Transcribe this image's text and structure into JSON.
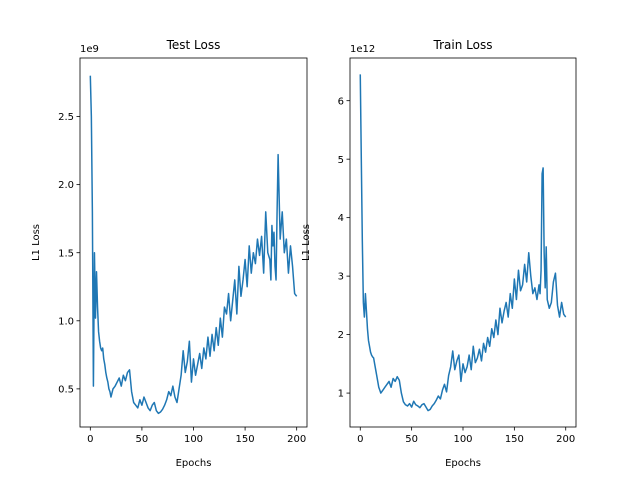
{
  "chart_data": [
    {
      "type": "line",
      "title": "Test Loss",
      "xlabel": "Epochs",
      "ylabel": "L1 Loss",
      "offset_label": "1e9",
      "xlim": [
        -10,
        210
      ],
      "ylim": [
        0.22,
        2.93
      ],
      "xticks": [
        0,
        50,
        100,
        150,
        200
      ],
      "yticks": [
        0.5,
        1.0,
        1.5,
        2.0,
        2.5
      ],
      "ytick_labels": [
        "0.5",
        "1.0",
        "1.5",
        "2.0",
        "2.5"
      ],
      "grid": false,
      "color": "#1f77b4",
      "series": [
        {
          "x": [
            0,
            1,
            2,
            3,
            4,
            5,
            6,
            7,
            8,
            9,
            10,
            11,
            12,
            13,
            14,
            15,
            16,
            17,
            18,
            19,
            20,
            22,
            24,
            26,
            28,
            30,
            32,
            34,
            36,
            38,
            40,
            42,
            44,
            46,
            48,
            50,
            52,
            54,
            56,
            58,
            60,
            62,
            64,
            66,
            68,
            70,
            72,
            74,
            76,
            78,
            80,
            82,
            84,
            86,
            88,
            90,
            92,
            94,
            96,
            98,
            100,
            102,
            104,
            106,
            108,
            110,
            112,
            114,
            116,
            118,
            120,
            122,
            124,
            126,
            128,
            130,
            132,
            134,
            136,
            138,
            140,
            142,
            144,
            146,
            148,
            150,
            152,
            154,
            156,
            158,
            160,
            162,
            164,
            166,
            168,
            170,
            172,
            174,
            175,
            176,
            177,
            178,
            179,
            180,
            181,
            182,
            184,
            186,
            188,
            190,
            192,
            194,
            196,
            198,
            200
          ],
          "y": [
            2.8,
            2.5,
            1.8,
            0.52,
            1.5,
            1.02,
            1.36,
            1.1,
            0.92,
            0.85,
            0.8,
            0.78,
            0.8,
            0.72,
            0.68,
            0.62,
            0.58,
            0.55,
            0.5,
            0.48,
            0.44,
            0.5,
            0.52,
            0.55,
            0.58,
            0.52,
            0.6,
            0.56,
            0.62,
            0.64,
            0.48,
            0.4,
            0.38,
            0.36,
            0.42,
            0.38,
            0.44,
            0.4,
            0.36,
            0.34,
            0.38,
            0.4,
            0.34,
            0.32,
            0.33,
            0.35,
            0.38,
            0.42,
            0.48,
            0.45,
            0.52,
            0.44,
            0.4,
            0.5,
            0.6,
            0.78,
            0.62,
            0.7,
            0.85,
            0.55,
            0.72,
            0.6,
            0.68,
            0.76,
            0.65,
            0.8,
            0.72,
            0.88,
            0.74,
            0.9,
            0.78,
            0.95,
            0.82,
            1.02,
            0.88,
            1.1,
            1.05,
            1.2,
            1.0,
            1.15,
            1.3,
            1.05,
            1.4,
            1.18,
            1.3,
            1.45,
            1.25,
            1.55,
            1.35,
            1.5,
            1.42,
            1.6,
            1.48,
            1.62,
            1.35,
            1.8,
            1.5,
            1.45,
            1.3,
            1.7,
            1.55,
            1.65,
            1.4,
            1.3,
            1.8,
            2.22,
            1.6,
            1.8,
            1.5,
            1.6,
            1.35,
            1.55,
            1.4,
            1.2,
            1.18
          ]
        }
      ]
    },
    {
      "type": "line",
      "title": "Train Loss",
      "xlabel": "Epochs",
      "ylabel": "L1 Loss",
      "offset_label": "1e12",
      "xlim": [
        -10,
        210
      ],
      "ylim": [
        0.42,
        6.73
      ],
      "xticks": [
        0,
        50,
        100,
        150,
        200
      ],
      "yticks": [
        1,
        2,
        3,
        4,
        5,
        6
      ],
      "ytick_labels": [
        "1",
        "2",
        "3",
        "4",
        "5",
        "6"
      ],
      "grid": false,
      "color": "#1f77b4",
      "series": [
        {
          "x": [
            0,
            1,
            2,
            3,
            4,
            5,
            6,
            7,
            8,
            9,
            10,
            11,
            12,
            13,
            14,
            15,
            16,
            17,
            18,
            19,
            20,
            22,
            24,
            26,
            28,
            30,
            32,
            34,
            36,
            38,
            40,
            42,
            44,
            46,
            48,
            50,
            52,
            54,
            56,
            58,
            60,
            62,
            64,
            66,
            68,
            70,
            72,
            74,
            76,
            78,
            80,
            82,
            84,
            86,
            88,
            90,
            92,
            94,
            96,
            98,
            100,
            102,
            104,
            106,
            108,
            110,
            112,
            114,
            116,
            118,
            120,
            122,
            124,
            126,
            128,
            130,
            132,
            134,
            136,
            138,
            140,
            142,
            144,
            146,
            148,
            150,
            152,
            154,
            156,
            158,
            160,
            162,
            164,
            166,
            168,
            170,
            172,
            174,
            175,
            176,
            177,
            178,
            179,
            180,
            181,
            182,
            184,
            186,
            188,
            190,
            192,
            194,
            196,
            198,
            200
          ],
          "y": [
            6.45,
            5.0,
            3.6,
            2.55,
            2.3,
            2.7,
            2.4,
            2.1,
            1.9,
            1.8,
            1.7,
            1.65,
            1.62,
            1.6,
            1.5,
            1.4,
            1.3,
            1.2,
            1.1,
            1.05,
            1.0,
            1.05,
            1.1,
            1.15,
            1.2,
            1.1,
            1.25,
            1.2,
            1.28,
            1.22,
            1.0,
            0.85,
            0.8,
            0.78,
            0.82,
            0.76,
            0.86,
            0.8,
            0.78,
            0.75,
            0.8,
            0.82,
            0.76,
            0.7,
            0.72,
            0.78,
            0.82,
            0.88,
            0.95,
            0.9,
            1.05,
            1.15,
            1.02,
            1.3,
            1.45,
            1.72,
            1.4,
            1.55,
            1.65,
            1.2,
            1.5,
            1.35,
            1.45,
            1.65,
            1.4,
            1.8,
            1.52,
            1.6,
            1.75,
            1.55,
            1.85,
            1.7,
            1.95,
            1.8,
            2.1,
            1.95,
            2.25,
            2.0,
            2.45,
            2.2,
            2.4,
            2.55,
            2.3,
            2.7,
            2.45,
            2.95,
            2.6,
            3.1,
            2.75,
            2.85,
            3.2,
            2.9,
            3.4,
            3.0,
            2.7,
            2.8,
            2.6,
            2.85,
            2.7,
            3.1,
            4.75,
            4.85,
            3.4,
            2.8,
            3.5,
            2.6,
            2.45,
            2.55,
            2.9,
            3.05,
            2.5,
            2.3,
            2.55,
            2.35,
            2.3
          ]
        }
      ]
    }
  ]
}
